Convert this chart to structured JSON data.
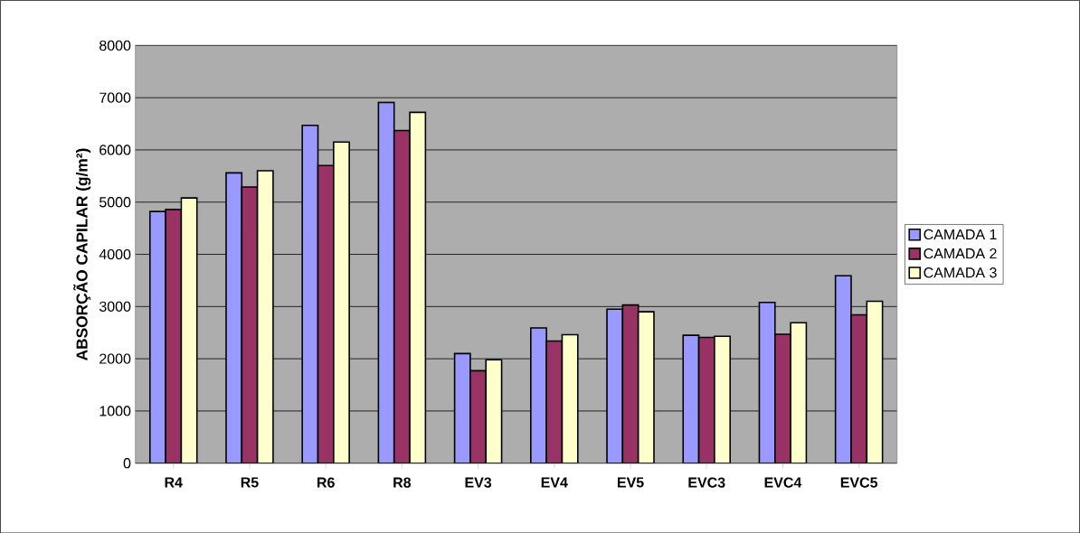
{
  "chart_data": {
    "type": "bar",
    "ylabel": "ABSORÇÃO CAPILAR (g/m²)",
    "categories": [
      "R4",
      "R5",
      "R6",
      "R8",
      "EV3",
      "EV4",
      "EV5",
      "EVC3",
      "EVC4",
      "EVC5"
    ],
    "series": [
      {
        "name": "CAMADA 1",
        "color": "#9999ff",
        "values": [
          4820,
          5560,
          6470,
          6910,
          2100,
          2590,
          2950,
          2450,
          3080,
          3590
        ]
      },
      {
        "name": "CAMADA 2",
        "color": "#993366",
        "values": [
          4860,
          5290,
          5700,
          6370,
          1770,
          2340,
          3030,
          2410,
          2470,
          2840
        ]
      },
      {
        "name": "CAMADA 3",
        "color": "#ffffcc",
        "values": [
          5080,
          5600,
          6150,
          6720,
          1980,
          2460,
          2900,
          2430,
          2690,
          3100
        ]
      }
    ],
    "ylim": [
      0,
      8000
    ],
    "yticks": [
      0,
      1000,
      2000,
      3000,
      4000,
      5000,
      6000,
      7000,
      8000
    ],
    "grid": "y",
    "legend": "right"
  }
}
